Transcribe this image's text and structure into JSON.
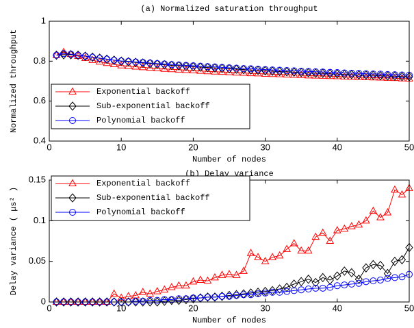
{
  "chart_data": [
    {
      "type": "line",
      "title": "(a) Normalized saturation throughput",
      "xlabel": "Number of nodes",
      "ylabel": "Normalized throughput",
      "x": [
        1,
        2,
        3,
        4,
        5,
        6,
        7,
        8,
        9,
        10,
        11,
        12,
        13,
        14,
        15,
        16,
        17,
        18,
        19,
        20,
        21,
        22,
        23,
        24,
        25,
        26,
        27,
        28,
        29,
        30,
        31,
        32,
        33,
        34,
        35,
        36,
        37,
        38,
        39,
        40,
        41,
        42,
        43,
        44,
        45,
        46,
        47,
        48,
        49,
        50
      ],
      "series": [
        {
          "name": "Exponential backoff",
          "color": "#ff0000",
          "marker": "triangle",
          "values": [
            0.83,
            0.845,
            0.835,
            0.825,
            0.815,
            0.805,
            0.797,
            0.79,
            0.784,
            0.778,
            0.775,
            0.772,
            0.769,
            0.766,
            0.764,
            0.761,
            0.759,
            0.757,
            0.755,
            0.753,
            0.751,
            0.749,
            0.747,
            0.746,
            0.744,
            0.742,
            0.741,
            0.739,
            0.738,
            0.736,
            0.735,
            0.734,
            0.732,
            0.731,
            0.73,
            0.728,
            0.727,
            0.726,
            0.725,
            0.724,
            0.722,
            0.721,
            0.72,
            0.719,
            0.718,
            0.717,
            0.716,
            0.715,
            0.713,
            0.712
          ]
        },
        {
          "name": "Sub-exponential backoff",
          "color": "#000000",
          "marker": "diamond",
          "values": [
            0.83,
            0.832,
            0.832,
            0.83,
            0.825,
            0.82,
            0.815,
            0.81,
            0.805,
            0.8,
            0.797,
            0.794,
            0.791,
            0.788,
            0.785,
            0.782,
            0.779,
            0.777,
            0.774,
            0.772,
            0.77,
            0.768,
            0.766,
            0.764,
            0.762,
            0.76,
            0.758,
            0.756,
            0.754,
            0.752,
            0.75,
            0.748,
            0.747,
            0.745,
            0.743,
            0.742,
            0.74,
            0.739,
            0.737,
            0.736,
            0.734,
            0.733,
            0.731,
            0.73,
            0.729,
            0.727,
            0.726,
            0.725,
            0.723,
            0.722
          ]
        },
        {
          "name": "Polynomial backoff",
          "color": "#0000ff",
          "marker": "circle",
          "values": [
            0.83,
            0.838,
            0.835,
            0.83,
            0.825,
            0.82,
            0.815,
            0.81,
            0.805,
            0.801,
            0.799,
            0.796,
            0.794,
            0.791,
            0.788,
            0.786,
            0.783,
            0.781,
            0.779,
            0.777,
            0.775,
            0.773,
            0.771,
            0.769,
            0.767,
            0.765,
            0.763,
            0.762,
            0.76,
            0.758,
            0.756,
            0.755,
            0.753,
            0.752,
            0.75,
            0.749,
            0.747,
            0.746,
            0.744,
            0.743,
            0.741,
            0.74,
            0.739,
            0.737,
            0.736,
            0.735,
            0.733,
            0.732,
            0.731,
            0.73
          ]
        }
      ],
      "xlim": [
        0,
        50
      ],
      "xticks": [
        0,
        10,
        20,
        30,
        40,
        50
      ],
      "ylim": [
        0.4,
        1
      ],
      "yticks": [
        0.4,
        0.6,
        0.8,
        1
      ],
      "legend": "lower left"
    },
    {
      "type": "line",
      "title": "(b) Delay variance",
      "xlabel": "Number of nodes",
      "ylabel": "Delay variance ( μs² )",
      "x": [
        1,
        2,
        3,
        4,
        5,
        6,
        7,
        8,
        9,
        10,
        11,
        12,
        13,
        14,
        15,
        16,
        17,
        18,
        19,
        20,
        21,
        22,
        23,
        24,
        25,
        26,
        27,
        28,
        29,
        30,
        31,
        32,
        33,
        34,
        35,
        36,
        37,
        38,
        39,
        40,
        41,
        42,
        43,
        44,
        45,
        46,
        47,
        48,
        49,
        50
      ],
      "series": [
        {
          "name": "Exponential backoff",
          "color": "#ff0000",
          "marker": "triangle",
          "values": [
            0,
            0,
            0,
            0,
            0,
            0,
            0,
            0,
            0.01,
            0.005,
            0.007,
            0.008,
            0.012,
            0.01,
            0.013,
            0.015,
            0.018,
            0.02,
            0.02,
            0.025,
            0.027,
            0.026,
            0.03,
            0.033,
            0.034,
            0.033,
            0.038,
            0.06,
            0.055,
            0.05,
            0.055,
            0.057,
            0.065,
            0.072,
            0.063,
            0.063,
            0.08,
            0.085,
            0.075,
            0.088,
            0.09,
            0.093,
            0.095,
            0.1,
            0.112,
            0.104,
            0.11,
            0.138,
            0.132,
            0.14
          ]
        },
        {
          "name": "Sub-exponential backoff",
          "color": "#000000",
          "marker": "diamond",
          "values": [
            0,
            0,
            0,
            0,
            0,
            0,
            0,
            0,
            0,
            0,
            0,
            0,
            0,
            0,
            0,
            0.001,
            0.002,
            0.002,
            0.003,
            0.004,
            0.005,
            0.006,
            0.006,
            0.007,
            0.008,
            0.009,
            0.01,
            0.011,
            0.012,
            0.013,
            0.014,
            0.016,
            0.018,
            0.022,
            0.025,
            0.028,
            0.024,
            0.03,
            0.027,
            0.032,
            0.038,
            0.036,
            0.028,
            0.042,
            0.046,
            0.045,
            0.035,
            0.05,
            0.052,
            0.067
          ]
        },
        {
          "name": "Polynomial backoff",
          "color": "#0000ff",
          "marker": "circle",
          "values": [
            0,
            0,
            0,
            0,
            0,
            0,
            0,
            0,
            0,
            0,
            0,
            0.001,
            0.001,
            0.002,
            0.002,
            0.003,
            0.003,
            0.004,
            0.004,
            0.005,
            0.005,
            0.006,
            0.006,
            0.007,
            0.007,
            0.008,
            0.009,
            0.009,
            0.01,
            0.011,
            0.012,
            0.012,
            0.013,
            0.014,
            0.015,
            0.016,
            0.017,
            0.017,
            0.018,
            0.02,
            0.021,
            0.022,
            0.023,
            0.025,
            0.026,
            0.027,
            0.029,
            0.03,
            0.031,
            0.034
          ]
        }
      ],
      "xlim": [
        0,
        50
      ],
      "xticks": [
        0,
        10,
        20,
        30,
        40,
        50
      ],
      "ylim": [
        0,
        0.15
      ],
      "yticks": [
        0,
        0.05,
        0.1,
        0.15
      ],
      "legend": "upper left"
    }
  ]
}
